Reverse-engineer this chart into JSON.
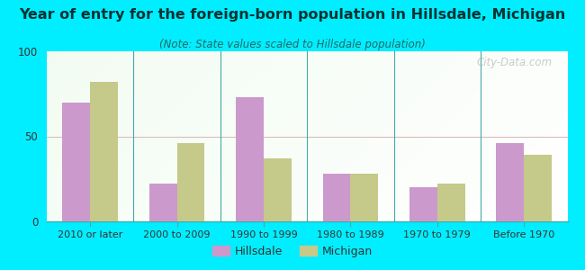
{
  "title": "Year of entry for the foreign-born population in Hillsdale, Michigan",
  "subtitle": "(Note: State values scaled to Hillsdale population)",
  "categories": [
    "2010 or later",
    "2000 to 2009",
    "1990 to 1999",
    "1980 to 1989",
    "1970 to 1979",
    "Before 1970"
  ],
  "hillsdale_values": [
    70,
    22,
    73,
    28,
    20,
    46
  ],
  "michigan_values": [
    82,
    46,
    37,
    28,
    22,
    39
  ],
  "hillsdale_color": "#cc99cc",
  "michigan_color": "#c5c98a",
  "background_outer": "#00eeff",
  "ylim": [
    0,
    100
  ],
  "yticks": [
    0,
    50,
    100
  ],
  "bar_width": 0.32,
  "legend_hillsdale": "Hillsdale",
  "legend_michigan": "Michigan",
  "title_fontsize": 11.5,
  "subtitle_fontsize": 8.5,
  "watermark_text": "City-Data.com"
}
